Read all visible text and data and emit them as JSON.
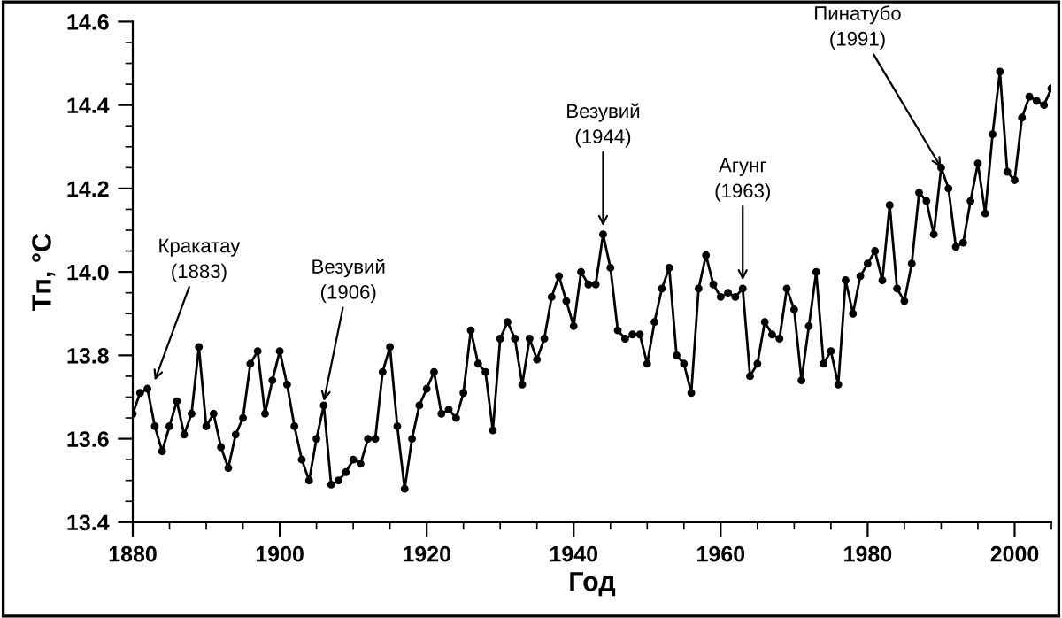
{
  "chart_data": {
    "type": "line",
    "xlabel": "Год",
    "ylabel": "Tп, °C",
    "x": [
      1880,
      1881,
      1882,
      1883,
      1884,
      1885,
      1886,
      1887,
      1888,
      1889,
      1890,
      1891,
      1892,
      1893,
      1894,
      1895,
      1896,
      1897,
      1898,
      1899,
      1900,
      1901,
      1902,
      1903,
      1904,
      1905,
      1906,
      1907,
      1908,
      1909,
      1910,
      1911,
      1912,
      1913,
      1914,
      1915,
      1916,
      1917,
      1918,
      1919,
      1920,
      1921,
      1922,
      1923,
      1924,
      1925,
      1926,
      1927,
      1928,
      1929,
      1930,
      1931,
      1932,
      1933,
      1934,
      1935,
      1936,
      1937,
      1938,
      1939,
      1940,
      1941,
      1942,
      1943,
      1944,
      1945,
      1946,
      1947,
      1948,
      1949,
      1950,
      1951,
      1952,
      1953,
      1954,
      1955,
      1956,
      1957,
      1958,
      1959,
      1960,
      1961,
      1962,
      1963,
      1964,
      1965,
      1966,
      1967,
      1968,
      1969,
      1970,
      1971,
      1972,
      1973,
      1974,
      1975,
      1976,
      1977,
      1978,
      1979,
      1980,
      1981,
      1982,
      1983,
      1984,
      1985,
      1986,
      1987,
      1988,
      1989,
      1990,
      1991,
      1992,
      1993,
      1994,
      1995,
      1996,
      1997,
      1998,
      1999,
      2000,
      2001,
      2002,
      2003,
      2004,
      2005
    ],
    "series": [
      {
        "color": "#000000",
        "values": [
          13.66,
          13.71,
          13.72,
          13.63,
          13.57,
          13.63,
          13.69,
          13.61,
          13.66,
          13.82,
          13.63,
          13.66,
          13.58,
          13.53,
          13.61,
          13.65,
          13.78,
          13.81,
          13.66,
          13.74,
          13.81,
          13.73,
          13.63,
          13.55,
          13.5,
          13.6,
          13.68,
          13.49,
          13.5,
          13.52,
          13.55,
          13.54,
          13.6,
          13.6,
          13.76,
          13.82,
          13.63,
          13.48,
          13.6,
          13.68,
          13.72,
          13.76,
          13.66,
          13.67,
          13.65,
          13.71,
          13.86,
          13.78,
          13.76,
          13.62,
          13.84,
          13.88,
          13.84,
          13.73,
          13.84,
          13.79,
          13.84,
          13.94,
          13.99,
          13.93,
          13.87,
          14.0,
          13.97,
          13.97,
          14.09,
          14.01,
          13.86,
          13.84,
          13.85,
          13.85,
          13.78,
          13.88,
          13.96,
          14.01,
          13.8,
          13.78,
          13.71,
          13.96,
          14.04,
          13.97,
          13.94,
          13.95,
          13.94,
          13.96,
          13.75,
          13.78,
          13.88,
          13.85,
          13.84,
          13.96,
          13.91,
          13.74,
          13.87,
          14.0,
          13.78,
          13.81,
          13.73,
          13.98,
          13.9,
          13.99,
          14.02,
          14.05,
          13.98,
          14.16,
          13.96,
          13.93,
          14.02,
          14.19,
          14.17,
          14.09,
          14.25,
          14.2,
          14.06,
          14.07,
          14.17,
          14.26,
          14.14,
          14.33,
          14.48,
          14.24,
          14.22,
          14.37,
          14.42,
          14.41,
          14.4,
          14.44
        ]
      }
    ],
    "xlim": [
      1880,
      2005
    ],
    "xticks": [
      1880,
      1900,
      1920,
      1940,
      1960,
      1980,
      2000
    ],
    "ylim": [
      13.4,
      14.6
    ],
    "yticks": [
      13.4,
      13.6,
      13.8,
      {
        "value": 14,
        "label": "14.0"
      },
      14.2,
      14.4,
      14.6
    ],
    "marker": "circle",
    "line_style": "solid",
    "grid": false,
    "legend": false,
    "annotations": [
      {
        "text": "Кракатау\n(1883)",
        "x": 1883,
        "y": 13.74
      },
      {
        "text": "Везувий\n(1906)",
        "x": 1906,
        "y": 13.69
      },
      {
        "text": "Везувий\n(1944)",
        "x": 1944,
        "y": 14.11
      },
      {
        "text": "Агунг\n(1963)",
        "x": 1963,
        "y": 13.98
      },
      {
        "text": "Пинатубо\n(1991)",
        "x": 1990,
        "y": 14.25
      }
    ]
  }
}
